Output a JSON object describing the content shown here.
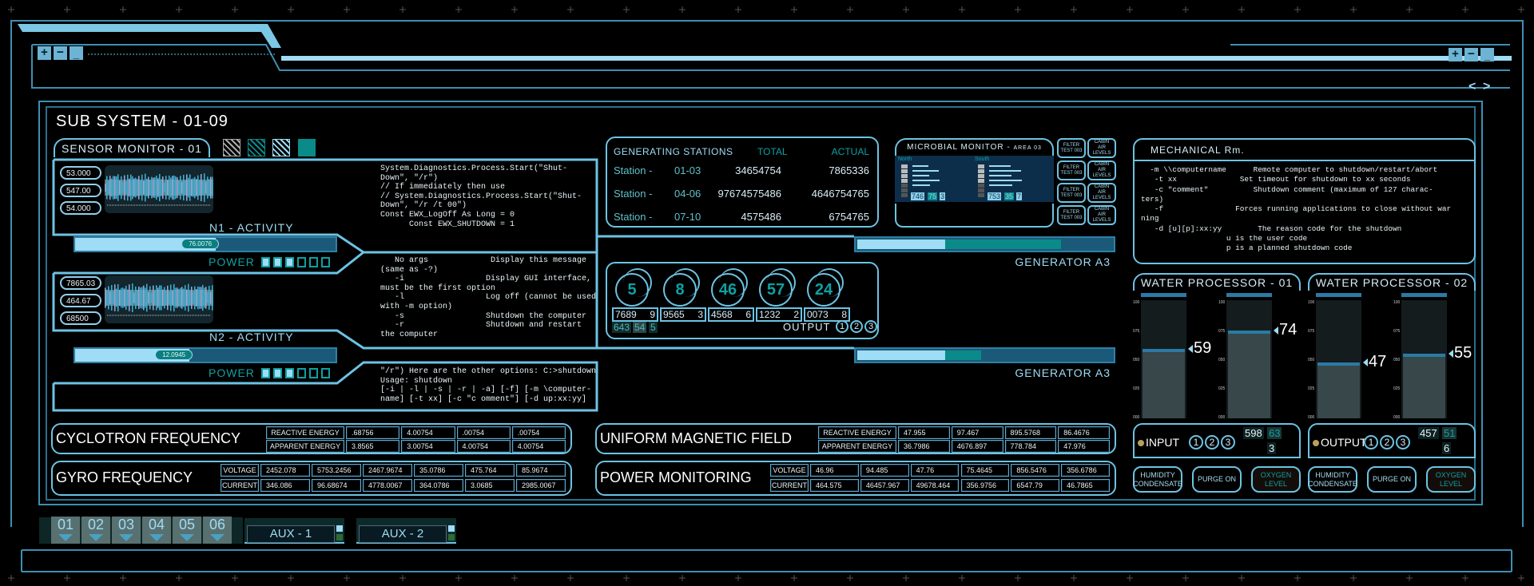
{
  "colors": {
    "line": "#6cc3e3",
    "bright": "#9fdcf5",
    "teal": "#0b8a8a",
    "dark_blue": "#1a5a78",
    "background": "#000000"
  },
  "window": {
    "left_icons": [
      "plus-icon",
      "minus-icon",
      "minimize-icon"
    ],
    "right_icons": [
      "plus-icon",
      "minus-icon",
      "minimize-icon"
    ],
    "nav": {
      "prev": "<",
      "next": ">"
    }
  },
  "subsystem": {
    "title": "SUB SYSTEM - 01-09"
  },
  "sensor": {
    "title": "SENSOR MONITOR - 01",
    "swatches": [
      "gray-hatch",
      "teal-hatch",
      "light-hatch",
      "teal-solid"
    ],
    "channels": [
      {
        "values": [
          "53.000",
          "547.00",
          "54.000"
        ],
        "activity_label": "N1 - ACTIVITY",
        "activity_value": "76.0076",
        "activity_percent": 54,
        "power_label": "POWER",
        "power_on": 3,
        "power_total": 6
      },
      {
        "values": [
          "7865.03",
          "464.67",
          "68500"
        ],
        "activity_label": "N2 - ACTIVITY",
        "activity_value": "12.0945",
        "activity_percent": 44,
        "power_label": "POWER",
        "power_on": 3,
        "power_total": 6
      }
    ]
  },
  "code_blocks": [
    [
      "System.Diagnostics.Process.Start(\"Shut-",
      "Down\", \"/r\")",
      "// If immediately then use",
      "// System.Diagnostics.Process.Start(\"Shut-",
      "Down\", \"/r /t 00\")",
      "Const EWX_LogOff As Long = 0",
      "      Const EWX_SHUTDOWN = 1"
    ],
    [
      "   No args             Display this message",
      "(same as -?)",
      "   -i                 Display GUI interface,",
      "must be the first option",
      "   -l                 Log off (cannot be used",
      "with -m option)",
      "   -s                 Shutdown the computer",
      "   -r                 Shutdown and restart",
      "the computer"
    ],
    [
      "\"/r\") Here are the other options: C:>shutdown",
      "Usage: shutdown",
      "[-i | -l | -s | -r | -a] [-f] [-m \\computer-",
      "name] [-t xx] [-c \"c omment\"] [-d up:xx:yy]"
    ]
  ],
  "generators": [
    {
      "label": "GENERATOR A3",
      "light_percent": 34,
      "teal_percent": 79
    },
    {
      "label": "GENERATOR A3",
      "light_percent": 34,
      "teal_percent": 48
    }
  ],
  "stations": {
    "headers": [
      "GENERATING STATIONS",
      "TOTAL",
      "ACTUAL"
    ],
    "rows": [
      {
        "prefix": "Station - ",
        "range": "01-03",
        "total": "34654754",
        "actual": "7865336"
      },
      {
        "prefix": "Station - ",
        "range": "04-06",
        "total": "97674575486",
        "actual": "4646754765"
      },
      {
        "prefix": "Station - ",
        "range": "07-10",
        "total": "4575486",
        "actual": "6754765"
      }
    ]
  },
  "gauges": {
    "dials": [
      {
        "value": "5",
        "left": "7689",
        "right": "9"
      },
      {
        "value": "8",
        "left": "9565",
        "right": "3"
      },
      {
        "value": "46",
        "left": "4568",
        "right": "6"
      },
      {
        "value": "57",
        "left": "1232",
        "right": "2"
      },
      {
        "value": "24",
        "left": "0073",
        "right": "8"
      }
    ],
    "readout": [
      "643",
      "54",
      "5"
    ],
    "output_label": "OUTPUT",
    "output_channels": [
      "1",
      "2",
      "3"
    ]
  },
  "microbial": {
    "title": "MICROBIAL MONITOR - ",
    "area": "AREA 03",
    "regions": [
      {
        "name": "North",
        "numbers": [
          "746",
          "75",
          "3"
        ]
      },
      {
        "name": "South",
        "numbers": [
          "753",
          "35",
          "7"
        ]
      }
    ],
    "buttons": [
      {
        "label": "FILTER TEST 003"
      },
      {
        "label": "CABIN AIR LEVELS"
      },
      {
        "label": "FILTER TEST 003"
      },
      {
        "label": "CABIN AIR LEVELS"
      },
      {
        "label": "FILTER TEST 003"
      },
      {
        "label": "CABIN AIR LEVELS"
      },
      {
        "label": "FILTER TEST 003"
      },
      {
        "label": "CABIN AIR LEVELS"
      }
    ]
  },
  "mechanical": {
    "title": "MECHANICAL Rm.",
    "lines": [
      "  -m \\\\computername      Remote computer to shutdown/restart/abort",
      "   -t xx              Set timeout for shutdown to xx seconds",
      "   -c \"comment\"          Shutdown comment (maximum of 127 charac-",
      "ters)",
      "   -f                Forces running applications to close without war",
      "ning",
      "   -d [u][p]:xx:yy        The reason code for the shutdown",
      "                   u is the user code",
      "                   p is a planned shutdown code"
    ]
  },
  "water": [
    {
      "title": "WATER PROCESSOR - 01",
      "scale": [
        "100",
        "075",
        "050",
        "025",
        "000"
      ],
      "levels": [
        59,
        74
      ],
      "io_label": "INPUT",
      "channels": [
        "1",
        "2",
        "3"
      ],
      "numbers": [
        "598",
        "63",
        "3"
      ],
      "buttons": [
        "HUMIDITY CONDENSATE",
        "PURGE ON",
        "OXYGEN LEVEL"
      ]
    },
    {
      "title": "WATER PROCESSOR - 02",
      "scale": [
        "100",
        "075",
        "050",
        "025",
        "000"
      ],
      "levels": [
        47,
        55
      ],
      "io_label": "OUTPUT",
      "channels": [
        "1",
        "2",
        "3"
      ],
      "numbers": [
        "457",
        "51",
        "6"
      ],
      "buttons": [
        "HUMIDITY CONDENSATE",
        "PURGE ON",
        "OXYGEN LEVEL"
      ]
    }
  ],
  "tables": [
    {
      "title": "CYCLOTRON FREQUENCY",
      "rows": [
        [
          "REACTIVE ENERGY",
          ".68756",
          "4.00754",
          ".00754",
          ".00754"
        ],
        [
          "APPARENT ENERGY",
          "3.8565",
          "3.00754",
          "4.00754",
          "4.00754"
        ]
      ]
    },
    {
      "title": "GYRO FREQUENCY",
      "rows": [
        [
          "VOLTAGE",
          "2452.078",
          "5753.2456",
          "2467.9674",
          "35.0786",
          "475.764",
          "85.9674"
        ],
        [
          "CURRENT",
          "346.086",
          "96.68674",
          "4778.0067",
          "364.0786",
          "3.0685",
          "2985.0067"
        ]
      ]
    },
    {
      "title": "UNIFORM MAGNETIC FIELD",
      "rows": [
        [
          "REACTIVE ENERGY",
          "47.955",
          "97.467",
          "895.5768",
          "86.4676"
        ],
        [
          "APPARENT ENERGY",
          "36.7986",
          "4676.897",
          "778.784",
          "47.976"
        ]
      ]
    },
    {
      "title": "POWER MONITORING",
      "rows": [
        [
          "VOLTAGE",
          "46.96",
          "94.485",
          "47.76",
          "75.4645",
          "856.5476",
          "356.6786"
        ],
        [
          "CURRENT",
          "464.575",
          "46457.967",
          "49678.464",
          "356.9756",
          "6547.79",
          "46.7865"
        ]
      ]
    }
  ],
  "bottom": {
    "tabs": [
      "01",
      "02",
      "03",
      "04",
      "05",
      "06"
    ],
    "aux": [
      "AUX - 1",
      "AUX - 2"
    ]
  }
}
